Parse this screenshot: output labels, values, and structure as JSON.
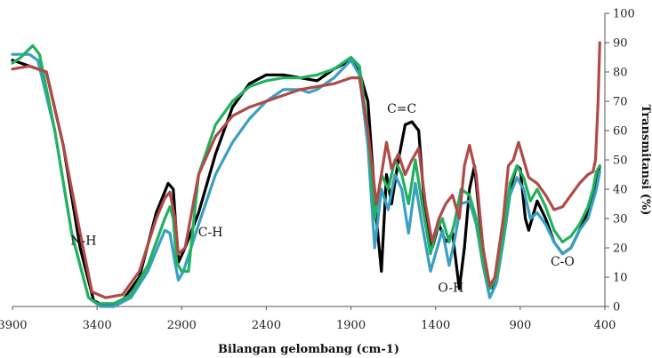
{
  "chart_data": {
    "type": "line",
    "title": "",
    "xlabel": "Bilangan gelombang (cm-1)",
    "ylabel": "Transmitansi (%)",
    "xlim": [
      3900,
      400
    ],
    "ylim": [
      0,
      100
    ],
    "x_ticks": [
      "3900",
      "3400",
      "2900",
      "2400",
      "1900",
      "1400",
      "900",
      "400"
    ],
    "y_ticks": [
      "0",
      "10",
      "20",
      "30",
      "40",
      "50",
      "60",
      "70",
      "80",
      "90",
      "100"
    ],
    "grid": false,
    "legend": "none",
    "annotations": [
      {
        "text": "N-H",
        "x": 3480,
        "y": 21
      },
      {
        "text": "C-H",
        "x": 2730,
        "y": 24
      },
      {
        "text": "C=C",
        "x": 1600,
        "y": 66
      },
      {
        "text": "O-H",
        "x": 1310,
        "y": 5
      },
      {
        "text": "C-O",
        "x": 650,
        "y": 14
      }
    ],
    "series": [
      {
        "color": "#000000",
        "points": [
          [
            3900,
            84
          ],
          [
            3800,
            82
          ],
          [
            3700,
            80
          ],
          [
            3600,
            55
          ],
          [
            3500,
            20
          ],
          [
            3420,
            2
          ],
          [
            3350,
            0
          ],
          [
            3250,
            2
          ],
          [
            3150,
            10
          ],
          [
            3050,
            32
          ],
          [
            2980,
            42
          ],
          [
            2950,
            40
          ],
          [
            2920,
            15
          ],
          [
            2880,
            20
          ],
          [
            2800,
            32
          ],
          [
            2700,
            52
          ],
          [
            2600,
            68
          ],
          [
            2500,
            76
          ],
          [
            2400,
            79
          ],
          [
            2300,
            79
          ],
          [
            2200,
            78
          ],
          [
            2100,
            77
          ],
          [
            2000,
            81
          ],
          [
            1900,
            84
          ],
          [
            1850,
            80
          ],
          [
            1800,
            70
          ],
          [
            1750,
            30
          ],
          [
            1720,
            12
          ],
          [
            1690,
            45
          ],
          [
            1660,
            35
          ],
          [
            1620,
            50
          ],
          [
            1580,
            62
          ],
          [
            1540,
            63
          ],
          [
            1500,
            60
          ],
          [
            1460,
            30
          ],
          [
            1420,
            20
          ],
          [
            1380,
            28
          ],
          [
            1340,
            22
          ],
          [
            1300,
            25
          ],
          [
            1260,
            6
          ],
          [
            1230,
            20
          ],
          [
            1200,
            40
          ],
          [
            1170,
            48
          ],
          [
            1140,
            30
          ],
          [
            1100,
            10
          ],
          [
            1060,
            6
          ],
          [
            1030,
            12
          ],
          [
            1000,
            30
          ],
          [
            960,
            40
          ],
          [
            920,
            48
          ],
          [
            900,
            47
          ],
          [
            870,
            30
          ],
          [
            850,
            26
          ],
          [
            800,
            36
          ],
          [
            750,
            30
          ],
          [
            700,
            22
          ],
          [
            650,
            18
          ],
          [
            600,
            20
          ],
          [
            550,
            26
          ],
          [
            500,
            32
          ],
          [
            470,
            38
          ],
          [
            450,
            42
          ],
          [
            430,
            48
          ]
        ]
      },
      {
        "color": "#3a9fc1",
        "points": [
          [
            3900,
            86
          ],
          [
            3800,
            86
          ],
          [
            3750,
            84
          ],
          [
            3650,
            60
          ],
          [
            3550,
            25
          ],
          [
            3450,
            3
          ],
          [
            3380,
            0
          ],
          [
            3300,
            0
          ],
          [
            3200,
            3
          ],
          [
            3100,
            12
          ],
          [
            3000,
            26
          ],
          [
            2970,
            25
          ],
          [
            2940,
            15
          ],
          [
            2920,
            9
          ],
          [
            2890,
            12
          ],
          [
            2800,
            28
          ],
          [
            2700,
            45
          ],
          [
            2600,
            56
          ],
          [
            2500,
            64
          ],
          [
            2400,
            70
          ],
          [
            2300,
            74
          ],
          [
            2200,
            74
          ],
          [
            2150,
            73
          ],
          [
            2100,
            74
          ],
          [
            2000,
            78
          ],
          [
            1900,
            84
          ],
          [
            1850,
            79
          ],
          [
            1800,
            55
          ],
          [
            1760,
            20
          ],
          [
            1720,
            40
          ],
          [
            1680,
            33
          ],
          [
            1640,
            45
          ],
          [
            1600,
            40
          ],
          [
            1560,
            25
          ],
          [
            1520,
            42
          ],
          [
            1480,
            28
          ],
          [
            1430,
            12
          ],
          [
            1400,
            18
          ],
          [
            1360,
            26
          ],
          [
            1320,
            14
          ],
          [
            1290,
            22
          ],
          [
            1250,
            35
          ],
          [
            1200,
            36
          ],
          [
            1160,
            28
          ],
          [
            1120,
            14
          ],
          [
            1080,
            3
          ],
          [
            1040,
            8
          ],
          [
            1000,
            22
          ],
          [
            960,
            38
          ],
          [
            920,
            44
          ],
          [
            880,
            40
          ],
          [
            840,
            30
          ],
          [
            800,
            32
          ],
          [
            750,
            28
          ],
          [
            700,
            22
          ],
          [
            650,
            18
          ],
          [
            600,
            20
          ],
          [
            550,
            26
          ],
          [
            500,
            30
          ],
          [
            470,
            36
          ],
          [
            450,
            40
          ],
          [
            430,
            46
          ]
        ]
      },
      {
        "color": "#21b25e",
        "points": [
          [
            3900,
            83
          ],
          [
            3850,
            85
          ],
          [
            3780,
            89
          ],
          [
            3740,
            86
          ],
          [
            3650,
            60
          ],
          [
            3550,
            25
          ],
          [
            3450,
            3
          ],
          [
            3400,
            1
          ],
          [
            3300,
            1
          ],
          [
            3200,
            4
          ],
          [
            3100,
            14
          ],
          [
            3000,
            30
          ],
          [
            2970,
            34
          ],
          [
            2950,
            30
          ],
          [
            2930,
            15
          ],
          [
            2900,
            12
          ],
          [
            2860,
            12
          ],
          [
            2800,
            45
          ],
          [
            2700,
            62
          ],
          [
            2600,
            70
          ],
          [
            2500,
            75
          ],
          [
            2400,
            77
          ],
          [
            2300,
            78
          ],
          [
            2200,
            78
          ],
          [
            2100,
            79
          ],
          [
            2000,
            81
          ],
          [
            1900,
            85
          ],
          [
            1850,
            82
          ],
          [
            1800,
            60
          ],
          [
            1760,
            30
          ],
          [
            1720,
            45
          ],
          [
            1680,
            40
          ],
          [
            1640,
            50
          ],
          [
            1600,
            45
          ],
          [
            1560,
            35
          ],
          [
            1520,
            50
          ],
          [
            1480,
            35
          ],
          [
            1430,
            18
          ],
          [
            1400,
            25
          ],
          [
            1360,
            30
          ],
          [
            1320,
            22
          ],
          [
            1290,
            28
          ],
          [
            1250,
            40
          ],
          [
            1200,
            38
          ],
          [
            1160,
            30
          ],
          [
            1120,
            15
          ],
          [
            1080,
            6
          ],
          [
            1040,
            10
          ],
          [
            1000,
            25
          ],
          [
            960,
            42
          ],
          [
            920,
            48
          ],
          [
            880,
            44
          ],
          [
            840,
            36
          ],
          [
            800,
            40
          ],
          [
            750,
            34
          ],
          [
            700,
            26
          ],
          [
            650,
            22
          ],
          [
            600,
            24
          ],
          [
            550,
            28
          ],
          [
            500,
            34
          ],
          [
            470,
            40
          ],
          [
            450,
            46
          ],
          [
            430,
            48
          ]
        ]
      },
      {
        "color": "#b04a48",
        "points": [
          [
            3900,
            81
          ],
          [
            3800,
            82
          ],
          [
            3700,
            80
          ],
          [
            3600,
            55
          ],
          [
            3500,
            25
          ],
          [
            3430,
            5
          ],
          [
            3350,
            3
          ],
          [
            3250,
            4
          ],
          [
            3150,
            12
          ],
          [
            3050,
            30
          ],
          [
            3000,
            37
          ],
          [
            2970,
            39
          ],
          [
            2940,
            30
          ],
          [
            2920,
            18
          ],
          [
            2880,
            20
          ],
          [
            2800,
            45
          ],
          [
            2700,
            58
          ],
          [
            2600,
            65
          ],
          [
            2500,
            68
          ],
          [
            2400,
            70
          ],
          [
            2300,
            72
          ],
          [
            2200,
            74
          ],
          [
            2100,
            75
          ],
          [
            2000,
            76
          ],
          [
            1900,
            78
          ],
          [
            1850,
            78
          ],
          [
            1800,
            60
          ],
          [
            1750,
            35
          ],
          [
            1720,
            45
          ],
          [
            1690,
            56
          ],
          [
            1660,
            47
          ],
          [
            1620,
            52
          ],
          [
            1580,
            45
          ],
          [
            1540,
            50
          ],
          [
            1500,
            54
          ],
          [
            1460,
            35
          ],
          [
            1420,
            22
          ],
          [
            1380,
            30
          ],
          [
            1340,
            35
          ],
          [
            1300,
            38
          ],
          [
            1260,
            30
          ],
          [
            1230,
            48
          ],
          [
            1200,
            55
          ],
          [
            1160,
            45
          ],
          [
            1120,
            20
          ],
          [
            1080,
            7
          ],
          [
            1050,
            10
          ],
          [
            1000,
            30
          ],
          [
            970,
            48
          ],
          [
            940,
            50
          ],
          [
            910,
            56
          ],
          [
            880,
            50
          ],
          [
            850,
            44
          ],
          [
            800,
            42
          ],
          [
            750,
            38
          ],
          [
            700,
            33
          ],
          [
            650,
            34
          ],
          [
            600,
            38
          ],
          [
            550,
            42
          ],
          [
            500,
            45
          ],
          [
            470,
            46
          ],
          [
            455,
            50
          ],
          [
            440,
            70
          ],
          [
            430,
            90
          ]
        ]
      }
    ]
  }
}
